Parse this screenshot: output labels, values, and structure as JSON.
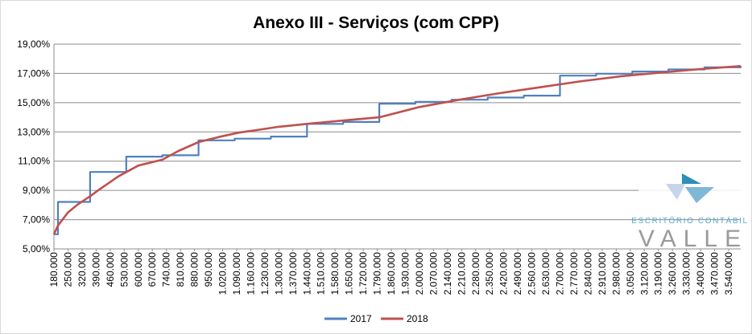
{
  "chart_data": {
    "type": "line",
    "title": "Anexo III - Serviços (com CPP)",
    "xlabel": "",
    "ylabel": "",
    "ylim": [
      5,
      19
    ],
    "y_ticks": [
      5,
      7,
      9,
      11,
      13,
      15,
      17,
      19
    ],
    "y_tick_labels": [
      "5,00%",
      "7,00%",
      "9,00%",
      "11,00%",
      "13,00%",
      "15,00%",
      "17,00%",
      "19,00%"
    ],
    "xlim": [
      180000,
      3600000
    ],
    "x_tick_labels": [
      "180.000",
      "250.000",
      "320.000",
      "390.000",
      "460.000",
      "530.000",
      "600.000",
      "670.000",
      "740.000",
      "810.000",
      "880.000",
      "950.000",
      "1.020.000",
      "1.090.000",
      "1.160.000",
      "1.230.000",
      "1.300.000",
      "1.370.000",
      "1.440.000",
      "1.510.000",
      "1.580.000",
      "1.650.000",
      "1.720.000",
      "1.790.000",
      "1.860.000",
      "1.930.000",
      "2.000.000",
      "2.070.000",
      "2.140.000",
      "2.210.000",
      "2.280.000",
      "2.350.000",
      "2.420.000",
      "2.490.000",
      "2.560.000",
      "2.630.000",
      "2.700.000",
      "2.770.000",
      "2.840.000",
      "2.910.000",
      "2.980.000",
      "3.050.000",
      "3.120.000",
      "3.190.000",
      "3.260.000",
      "3.330.000",
      "3.400.000",
      "3.470.000",
      "3.540.000"
    ],
    "legend_position": "bottom",
    "grid": true,
    "series": [
      {
        "name": "2017",
        "color": "#4f81bd",
        "step": true,
        "x": [
          180000,
          200000,
          360000,
          540000,
          720000,
          900000,
          1080000,
          1260000,
          1440000,
          1620000,
          1800000,
          1980000,
          2160000,
          2340000,
          2520000,
          2700000,
          2880000,
          3060000,
          3240000,
          3420000,
          3600000
        ],
        "y": [
          6.0,
          8.21,
          10.26,
          11.31,
          11.4,
          12.42,
          12.54,
          12.68,
          13.55,
          13.68,
          14.93,
          15.06,
          15.2,
          15.35,
          15.48,
          16.85,
          16.98,
          17.13,
          17.27,
          17.42,
          17.5
        ]
      },
      {
        "name": "2018",
        "color": "#c0504d",
        "step": false,
        "x": [
          180000,
          200000,
          250000,
          300000,
          360000,
          400000,
          500000,
          600000,
          720000,
          800000,
          900000,
          1000000,
          1100000,
          1200000,
          1300000,
          1440000,
          1600000,
          1800000,
          2000000,
          2200000,
          2400000,
          2600000,
          2800000,
          3000000,
          3200000,
          3400000,
          3600000
        ],
        "y": [
          6.0,
          6.6,
          7.5,
          8.05,
          8.6,
          9.0,
          9.95,
          10.7,
          11.1,
          11.7,
          12.3,
          12.65,
          12.95,
          13.15,
          13.35,
          13.55,
          13.75,
          14.0,
          14.7,
          15.2,
          15.65,
          16.05,
          16.45,
          16.8,
          17.05,
          17.3,
          17.5
        ]
      }
    ]
  },
  "logo": {
    "line1": "ESCRITÓRIO CONTÁBIL",
    "line2": "VALLE",
    "icon": "valle-logo-icon"
  }
}
